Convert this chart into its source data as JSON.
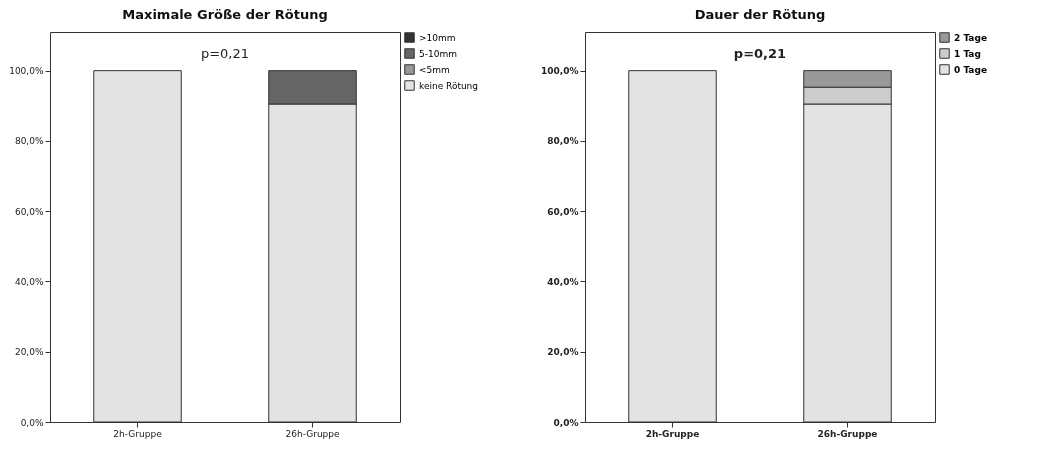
{
  "chart_data": [
    {
      "type": "bar",
      "title": "Maximale Größe der Rötung",
      "categories": [
        "2h-Gruppe",
        "26h-Gruppe"
      ],
      "stacked": true,
      "series": [
        {
          "name": "keine Rötung",
          "color": "#e3e3e3",
          "values": [
            100,
            90.5
          ]
        },
        {
          "name": "<5mm",
          "color": "#999999",
          "values": [
            0,
            0
          ]
        },
        {
          "name": "5-10mm",
          "color": "#666666",
          "values": [
            0,
            9.5
          ]
        },
        {
          "name": ">10mm",
          "color": "#333333",
          "values": [
            0,
            0
          ]
        }
      ],
      "ylim": [
        0,
        111
      ],
      "yticks": [
        {
          "value": 0,
          "label": "0,0%"
        },
        {
          "value": 20,
          "label": "20,0%"
        },
        {
          "value": 40,
          "label": "40,0%"
        },
        {
          "value": 60,
          "label": "60,0%"
        },
        {
          "value": 80,
          "label": "80,0%"
        },
        {
          "value": 100,
          "label": "100,0%"
        }
      ],
      "annotations": [
        "p=0,21"
      ],
      "legend": "right",
      "grid": false
    },
    {
      "type": "bar",
      "title": "Dauer der Rötung",
      "categories": [
        "2h-Gruppe",
        "26h-Gruppe"
      ],
      "stacked": true,
      "series": [
        {
          "name": "0 Tage",
          "color": "#e3e3e3",
          "values": [
            100,
            90.5
          ]
        },
        {
          "name": "1 Tag",
          "color": "#cccccc",
          "values": [
            0,
            4.8
          ]
        },
        {
          "name": "2 Tage",
          "color": "#999999",
          "values": [
            0,
            4.7
          ]
        }
      ],
      "ylim": [
        0,
        111
      ],
      "yticks": [
        {
          "value": 0,
          "label": "0,0%"
        },
        {
          "value": 20,
          "label": "20,0%"
        },
        {
          "value": 40,
          "label": "40,0%"
        },
        {
          "value": 60,
          "label": "60,0%"
        },
        {
          "value": 80,
          "label": "80,0%"
        },
        {
          "value": 100,
          "label": "100,0%"
        }
      ],
      "annotations": [
        "p=0,21"
      ],
      "legend": "right",
      "grid": false
    }
  ]
}
